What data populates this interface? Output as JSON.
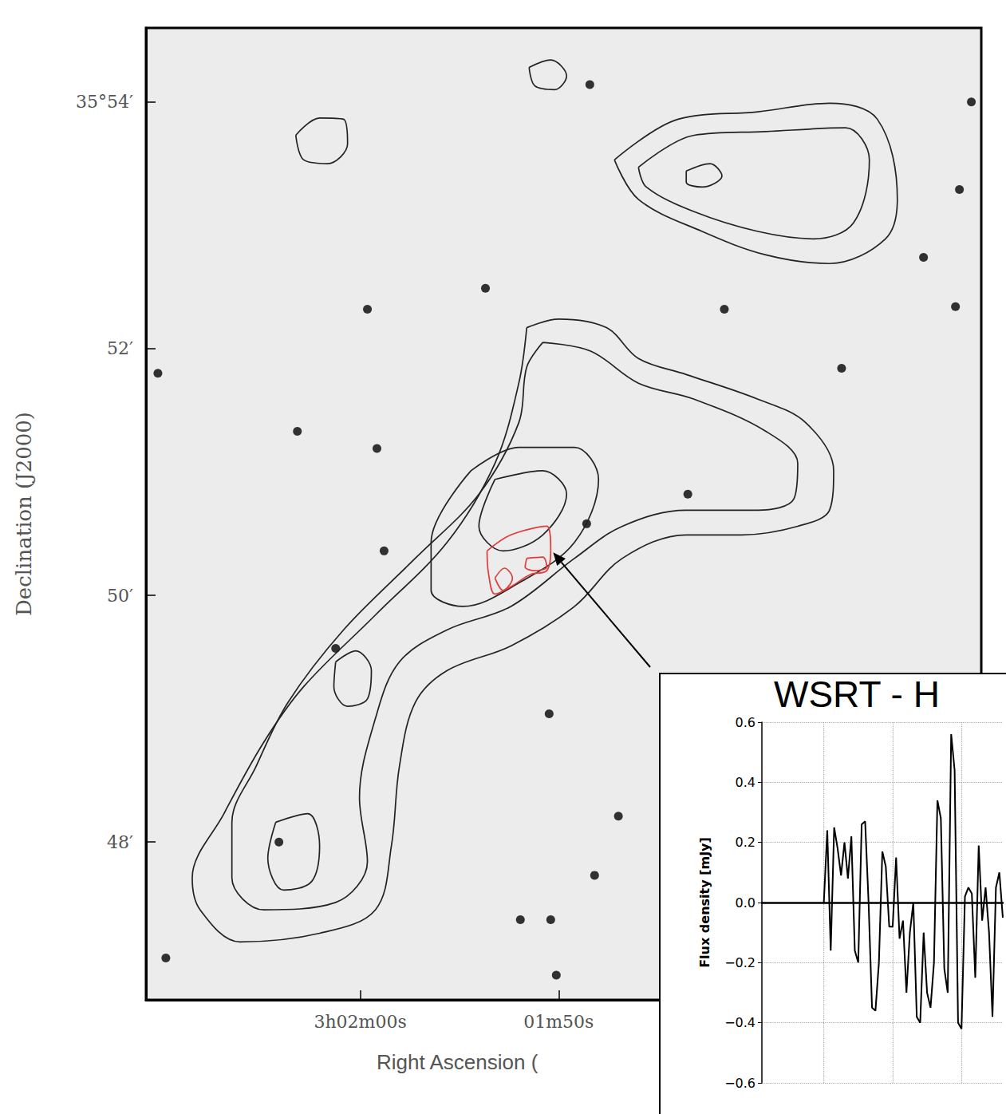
{
  "chart_data": [
    {
      "type": "contour",
      "x_label": "Right Ascension (",
      "y_label": "Declination (J2000)",
      "xlim": [
        130.8,
        88.7
      ],
      "ylim": [
        46.72,
        54.6
      ],
      "xticks": [
        {
          "value": 120,
          "label": "3h02m00s"
        },
        {
          "value": 110,
          "label": "01m50s"
        }
      ],
      "yticks": [
        {
          "value": 54,
          "label": "35°54′"
        },
        {
          "value": 52,
          "label": "52′"
        },
        {
          "value": 50,
          "label": "50′"
        },
        {
          "value": 48,
          "label": "48′"
        }
      ],
      "contours": [
        {
          "color": "#222222",
          "x": [
            107.19,
            103.98,
            99.96,
            96.35,
            93.94,
            92.93,
            93.53,
            96.35,
            99.56,
            102.77,
            105.98
          ],
          "y": [
            53.53,
            53.86,
            53.92,
            53.99,
            53.86,
            53.21,
            52.89,
            52.69,
            52.76,
            52.95,
            53.21
          ]
        },
        {
          "color": "#222222",
          "x": [
            105.98,
            103.17,
            99.56,
            95.54,
            94.34,
            95.14,
            97.15,
            99.96,
            103.17,
            105.58
          ],
          "y": [
            53.47,
            53.73,
            53.76,
            53.79,
            53.53,
            53.02,
            52.89,
            52.95,
            53.11,
            53.31
          ]
        },
        {
          "color": "#222222",
          "x": [
            103.57,
            102.37,
            101.77,
            102.77,
            103.57
          ],
          "y": [
            53.44,
            53.5,
            53.4,
            53.31,
            53.35
          ]
        },
        {
          "color": "#222222",
          "x": [
            111.49,
            110.4,
            109.6,
            110.2,
            111.2
          ],
          "y": [
            54.28,
            54.34,
            54.21,
            54.1,
            54.13
          ]
        },
        {
          "color": "#222222",
          "x": [
            123.25,
            122.05,
            120.84,
            120.64,
            121.65,
            122.85
          ],
          "y": [
            53.73,
            53.87,
            53.86,
            53.66,
            53.5,
            53.53
          ]
        },
        {
          "color": "#222222",
          "x": [
            111.61,
            110.0,
            107.59,
            105.98,
            103.57,
            99.96,
            97.55,
            96.14,
            96.35,
            97.95,
            100.76,
            103.57,
            106.79,
            109.2,
            112.41,
            115.62,
            117.23,
            118.03,
            118.43,
            119.24,
            122.05,
            126.06,
            128.07,
            128.47,
            126.87,
            124.86,
            122.85,
            119.24,
            115.62,
            113.21,
            112.01
          ],
          "y": [
            52.17,
            52.24,
            52.17,
            51.92,
            51.79,
            51.59,
            51.4,
            51.01,
            50.69,
            50.56,
            50.49,
            50.49,
            50.3,
            49.91,
            49.59,
            49.39,
            49.13,
            48.61,
            47.97,
            47.45,
            47.26,
            47.19,
            47.45,
            47.71,
            48.23,
            48.81,
            49.26,
            49.84,
            50.43,
            51.07,
            51.72
          ]
        },
        {
          "color": "#222222",
          "x": [
            110.8,
            108.39,
            105.98,
            103.17,
            99.56,
            97.95,
            98.15,
            99.96,
            103.57,
            106.79,
            109.2,
            112.41,
            115.62,
            118.03,
            119.24,
            120.04,
            119.64,
            121.24,
            124.86,
            126.47,
            126.47,
            125.26,
            123.65,
            120.84,
            117.23,
            114.02,
            112.01,
            111.61
          ],
          "y": [
            52.05,
            51.98,
            51.72,
            51.59,
            51.33,
            51.07,
            50.78,
            50.69,
            50.69,
            50.56,
            50.3,
            49.91,
            49.72,
            49.46,
            49.0,
            48.36,
            47.84,
            47.51,
            47.45,
            47.71,
            48.16,
            48.61,
            49.13,
            49.72,
            50.3,
            50.82,
            51.4,
            51.85
          ]
        },
        {
          "color": "#222222",
          "x": [
            114.42,
            112.01,
            109.2,
            107.99,
            109.2,
            112.01,
            114.82,
            116.43,
            116.43
          ],
          "y": [
            51.01,
            51.2,
            51.2,
            50.94,
            50.43,
            50.1,
            49.91,
            50.04,
            50.43
          ]
        },
        {
          "color": "#222222",
          "x": [
            113.21,
            110.8,
            109.6,
            110.8,
            112.81,
            114.02
          ],
          "y": [
            50.94,
            51.01,
            50.82,
            50.49,
            50.36,
            50.56
          ]
        },
        {
          "color": "#222222",
          "x": [
            121.24,
            120.24,
            119.44,
            119.64,
            120.64,
            121.33
          ],
          "y": [
            49.46,
            49.55,
            49.39,
            49.16,
            49.1,
            49.26
          ]
        },
        {
          "color": "#222222",
          "x": [
            124.26,
            122.65,
            122.05,
            122.45,
            123.86,
            124.66
          ],
          "y": [
            48.16,
            48.23,
            47.97,
            47.68,
            47.61,
            47.87
          ]
        },
        {
          "color": "#e03c3c",
          "x": [
            113.61,
            112.41,
            110.6,
            110.4,
            110.6,
            111.41,
            112.41,
            113.21,
            113.53
          ],
          "y": [
            50.36,
            50.49,
            50.56,
            50.36,
            50.2,
            50.17,
            50.07,
            50.01,
            50.17
          ]
        },
        {
          "color": "#e03c3c",
          "x": [
            111.61,
            110.8,
            110.6,
            111.2,
            111.69
          ],
          "y": [
            50.3,
            50.31,
            50.23,
            50.2,
            50.23
          ]
        },
        {
          "color": "#e03c3c",
          "x": [
            113.21,
            112.73,
            112.33,
            112.81
          ],
          "y": [
            50.14,
            50.22,
            50.14,
            50.04
          ]
        }
      ],
      "stars": {
        "color": "#111111",
        "x": [
          119.64,
          123.17,
          91.61,
          90.0,
          89.2,
          130.2,
          110.48,
          110.12,
          106.99,
          121.24,
          110.4,
          113.69,
          108.43,
          89.8,
          119.16,
          118.8,
          103.49,
          111.93,
          108.19,
          129.8,
          95.74,
          124.1,
          108.59,
          101.65
        ],
        "y": [
          52.32,
          51.33,
          52.74,
          52.34,
          54.0,
          51.8,
          49.04,
          46.92,
          48.21,
          49.57,
          47.37,
          52.49,
          54.14,
          53.29,
          51.19,
          50.36,
          50.82,
          47.37,
          47.73,
          47.06,
          51.84,
          48.0,
          50.58,
          52.32
        ]
      }
    },
    {
      "type": "line",
      "title": "WSRT - H",
      "y_label": "Flux density [mJy]",
      "color": "#000000",
      "grid": true,
      "tick_labels": "y",
      "categories": [
        null,
        null,
        null,
        null,
        null,
        null,
        null,
        null,
        null,
        null,
        null,
        null,
        null,
        null,
        null,
        null,
        null,
        null,
        null,
        null,
        null,
        null,
        null,
        null,
        null,
        null,
        null,
        null,
        null,
        null,
        null,
        null,
        null,
        null,
        null,
        null,
        null,
        null,
        null,
        null,
        null,
        null,
        null,
        null,
        null,
        null,
        null,
        null,
        null,
        null,
        null,
        null,
        null,
        null,
        null,
        null,
        null,
        null,
        null,
        null,
        null,
        null,
        null,
        null,
        null,
        null,
        null,
        null,
        null,
        null,
        null
      ],
      "values": [
        null,
        null,
        null,
        null,
        null,
        null,
        null,
        null,
        null,
        null,
        null,
        null,
        null,
        null,
        null,
        null,
        null,
        null,
        0,
        0.24,
        -0.16,
        0.25,
        0.18,
        0.09,
        0.2,
        0.08,
        0.22,
        -0.16,
        -0.2,
        0.26,
        0.27,
        0.0,
        -0.35,
        -0.36,
        -0.2,
        0.17,
        0.12,
        -0.08,
        -0.08,
        0.15,
        -0.12,
        -0.06,
        -0.3,
        -0.1,
        0.0,
        -0.38,
        -0.4,
        -0.1,
        -0.3,
        -0.35,
        -0.2,
        0.34,
        0.28,
        -0.22,
        -0.3,
        0.56,
        0.44,
        -0.4,
        -0.42,
        0.02,
        0.05,
        0.03,
        -0.25,
        0.19,
        -0.06,
        0.05,
        -0.1,
        -0.38,
        0.05,
        0.1,
        -0.05
      ],
      "ylim": [
        -0.6,
        0.6
      ],
      "yticks": [
        0.6,
        0.4,
        0.2,
        {
          "value": 0,
          "label": "0.0"
        },
        {
          "value": -0.2,
          "label": "−0.2"
        },
        {
          "value": -0.4,
          "label": "−0.4"
        },
        {
          "value": -0.6,
          "label": "−0.6"
        }
      ]
    }
  ]
}
